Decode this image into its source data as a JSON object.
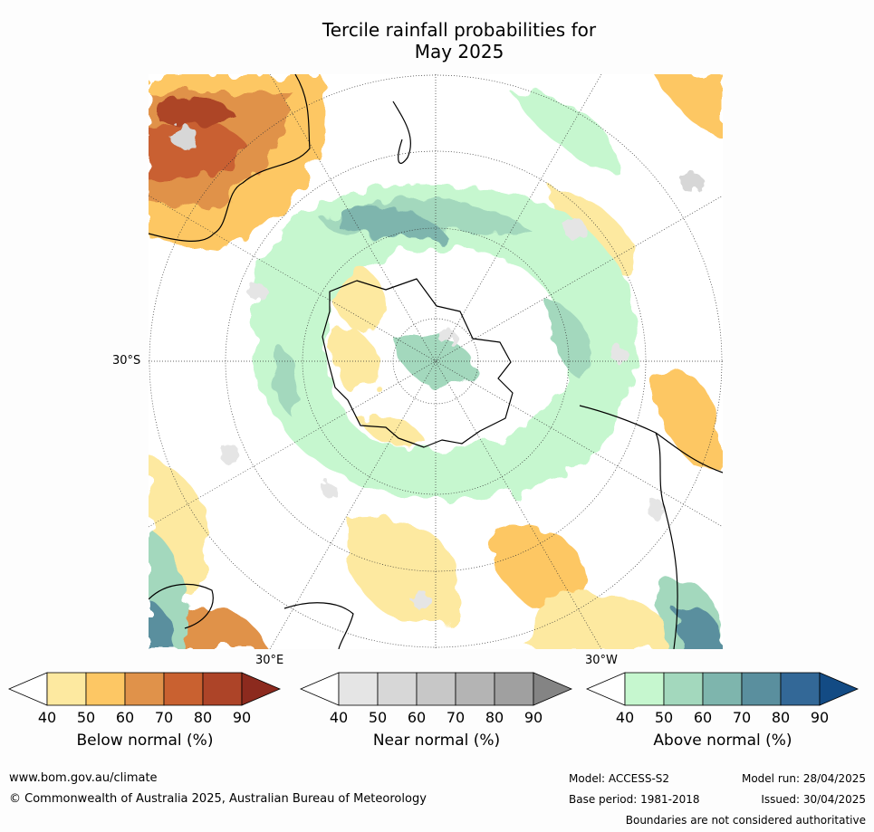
{
  "title_line1": "Tercile rainfall probabilities for",
  "title_line2": "May 2025",
  "map": {
    "projection": "south polar stereographic",
    "lat_label": "30°S",
    "lon_label_left": "30°E",
    "lon_label_right": "30°W"
  },
  "colorbars": [
    {
      "label": "Below normal (%)",
      "ticks": [
        "40",
        "50",
        "60",
        "70",
        "80",
        "90"
      ],
      "colors": [
        "#ffffff",
        "#fde9a0",
        "#fdc764",
        "#e0924a",
        "#c96130",
        "#ad4428",
        "#8c2a1e"
      ]
    },
    {
      "label": "Near normal (%)",
      "ticks": [
        "40",
        "50",
        "60",
        "70",
        "80",
        "90"
      ],
      "colors": [
        "#ffffff",
        "#e5e5e5",
        "#d7d7d7",
        "#c7c7c7",
        "#b4b4b4",
        "#a0a0a0",
        "#848484"
      ]
    },
    {
      "label": "Above normal (%)",
      "ticks": [
        "40",
        "50",
        "60",
        "70",
        "80",
        "90"
      ],
      "colors": [
        "#ffffff",
        "#c6f7cf",
        "#a3d8bd",
        "#7eb5ad",
        "#5a8f9e",
        "#336897",
        "#134b84"
      ]
    }
  ],
  "footer": {
    "website": "www.bom.gov.au/climate",
    "copyright": "© Commonwealth of Australia 2025, Australian Bureau of Meteorology",
    "model": "Model: ACCESS-S2",
    "base_period": "Base period: 1981-2018",
    "model_run": "Model run: 28/04/2025",
    "issued": "Issued: 30/04/2025",
    "disclaimer": "Boundaries are not considered authoritative"
  }
}
